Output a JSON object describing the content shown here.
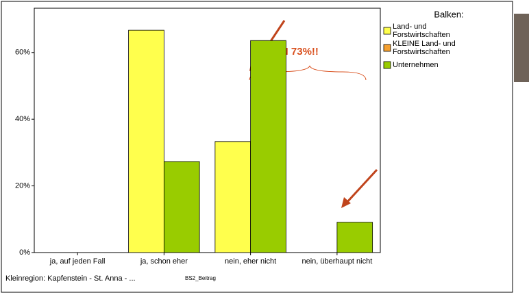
{
  "chart_data": {
    "type": "bar",
    "legend_title": "Balken:",
    "annotation": "UN 73%!!",
    "footer": "Kleinregion: Kapfenstein - St. Anna - ...",
    "footer_note": "BS2_Beitrag",
    "categories": [
      "ja, auf jeden Fall",
      "ja, schon eher",
      "nein, eher nicht",
      "nein, überhaupt nicht"
    ],
    "series": [
      {
        "name": "Land- und Forstwirtschaften",
        "color": "#ffff4d",
        "values": [
          null,
          66.7,
          33.3,
          null
        ]
      },
      {
        "name": "KLEINE Land- und Forstwirtschaften",
        "color": "#f5a030",
        "values": [
          null,
          null,
          null,
          null
        ]
      },
      {
        "name": "Unternehmen",
        "color": "#99cc00",
        "values": [
          null,
          27.3,
          63.6,
          9.1
        ]
      }
    ],
    "ylim": [
      0,
      73.3
    ],
    "yticks": [
      {
        "value": 0,
        "label": "0%"
      },
      {
        "value": 20,
        "label": "20%"
      },
      {
        "value": 40,
        "label": "40%"
      },
      {
        "value": 60,
        "label": "60%"
      }
    ],
    "legend_position": "right"
  }
}
